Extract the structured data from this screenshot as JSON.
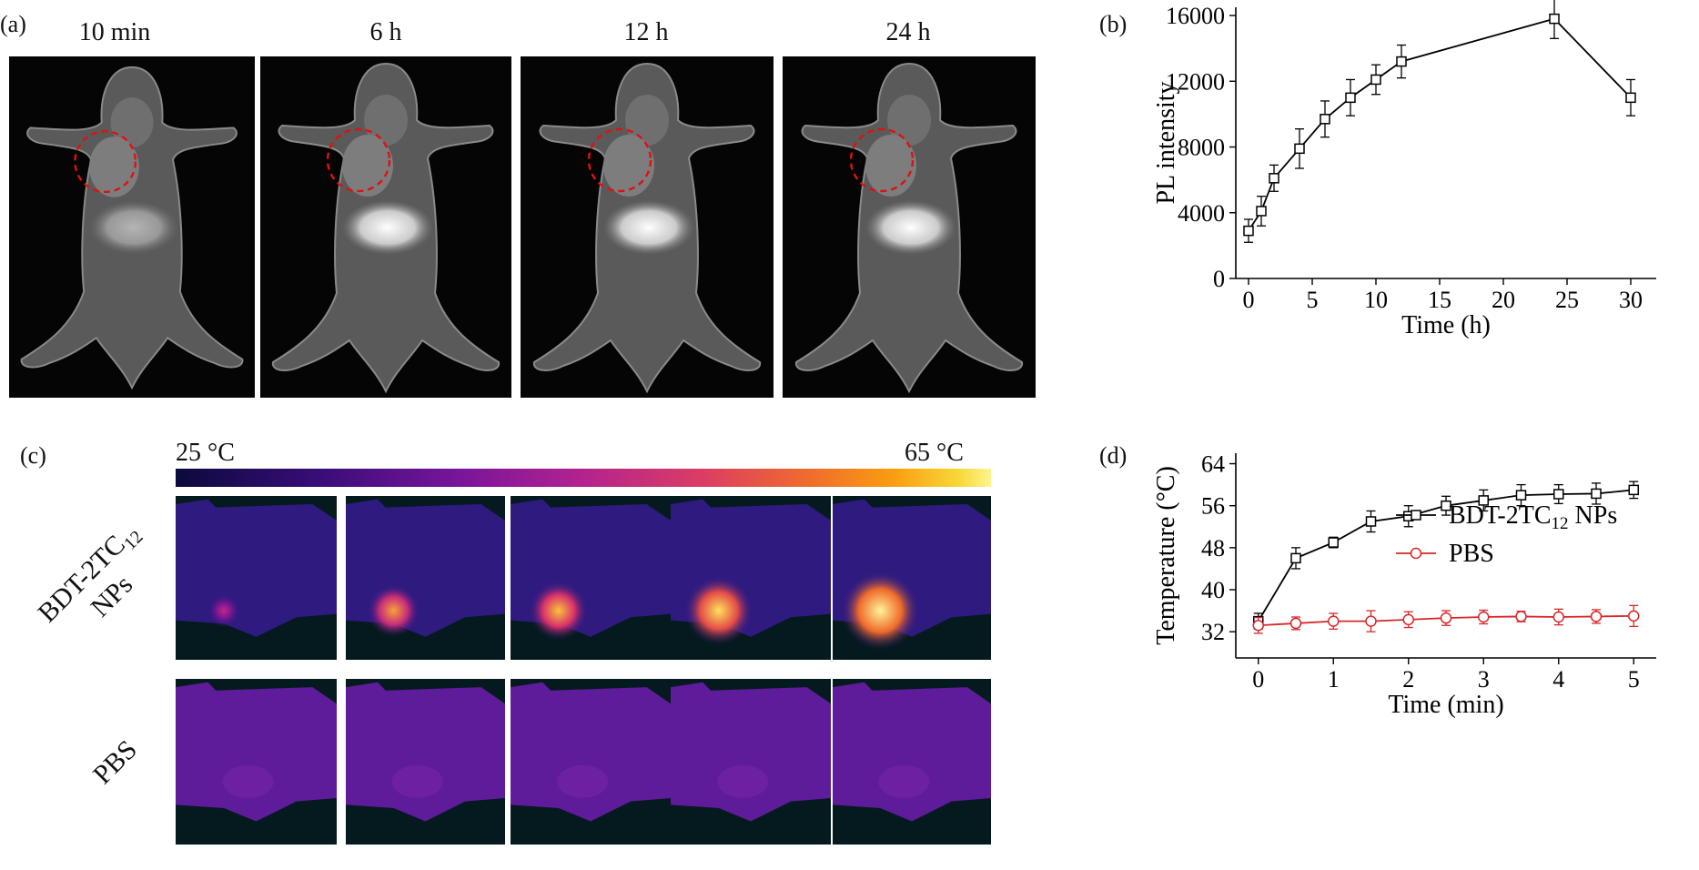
{
  "panels": {
    "a": {
      "label": "(a)",
      "timepoints": [
        "10 min",
        "6 h",
        "12 h",
        "24 h"
      ]
    },
    "b": {
      "label": "(b)"
    },
    "c": {
      "label": "(c)",
      "colorbar_min": "25 °C",
      "colorbar_max": "65 °C",
      "row_labels": {
        "np_line1": "BDT-2TC",
        "np_sub": "12",
        "np_line2": "NPs",
        "pbs": "PBS"
      }
    },
    "d": {
      "label": "(d)"
    }
  },
  "colors": {
    "np_series": "#000000",
    "pbs_series": "#d62728",
    "roi_circle": "#e01010"
  },
  "chart_data": [
    {
      "id": "b",
      "type": "line",
      "xlabel": "Time (h)",
      "ylabel": "PL intensity",
      "xlim": [
        -1,
        32
      ],
      "ylim": [
        0,
        16500
      ],
      "xticks": [
        0,
        5,
        10,
        15,
        20,
        25,
        30
      ],
      "yticks": [
        0,
        4000,
        8000,
        12000,
        16000
      ],
      "series": [
        {
          "marker": "square",
          "x": [
            0,
            1,
            2,
            4,
            6,
            8,
            10,
            12,
            24,
            30
          ],
          "y": [
            2900,
            4100,
            6100,
            7900,
            9700,
            11000,
            12100,
            13200,
            15800,
            11000
          ],
          "err": [
            700,
            900,
            800,
            1200,
            1100,
            1100,
            900,
            1000,
            1200,
            1100
          ]
        }
      ]
    },
    {
      "id": "d",
      "type": "line",
      "xlabel": "Time (min)",
      "ylabel": "Temperature (°C)",
      "xlim": [
        -0.3,
        5.3
      ],
      "ylim": [
        27,
        66
      ],
      "xticks": [
        0,
        1,
        2,
        3,
        4,
        5
      ],
      "yticks": [
        32,
        40,
        48,
        56,
        64
      ],
      "legend_position": "right",
      "series": [
        {
          "name": "BDT-2TC12 NPs",
          "legend_main": "BDT-2TC",
          "legend_sub": "12",
          "legend_tail": " NPs",
          "marker": "square",
          "x": [
            0,
            0.5,
            1,
            1.5,
            2,
            2.5,
            3,
            3.5,
            4,
            4.5,
            5
          ],
          "y": [
            34,
            46,
            49,
            53,
            54,
            56,
            57,
            58,
            58.2,
            58.3,
            59
          ],
          "err": [
            1.5,
            2,
            1,
            2,
            2,
            1.8,
            2,
            2,
            1.8,
            2,
            1.6
          ]
        },
        {
          "name": "PBS",
          "legend_main": "PBS",
          "marker": "circle",
          "x": [
            0,
            0.5,
            1,
            1.5,
            2,
            2.5,
            3,
            3.5,
            4,
            4.5,
            5
          ],
          "y": [
            33.2,
            33.6,
            34,
            34,
            34.3,
            34.6,
            34.8,
            34.9,
            34.8,
            34.9,
            35
          ],
          "err": [
            1.5,
            1.2,
            1.5,
            2,
            1.5,
            1.4,
            1.3,
            1,
            1.5,
            1.3,
            2
          ]
        }
      ]
    }
  ]
}
